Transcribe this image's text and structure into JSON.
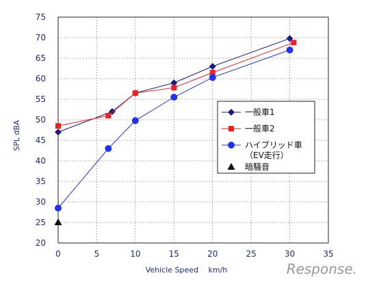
{
  "chart_data": {
    "type": "line",
    "xlabel": "Vehicle Speed　 km/h",
    "ylabel": "SPL  dBA",
    "xlim": [
      0,
      35
    ],
    "ylim": [
      20,
      75
    ],
    "x_ticks": [
      0,
      5,
      10,
      15,
      20,
      25,
      30,
      35
    ],
    "y_ticks": [
      20,
      25,
      30,
      35,
      40,
      45,
      50,
      55,
      60,
      65,
      70,
      75
    ],
    "grid": true,
    "legend_position": "right",
    "series": [
      {
        "name": "一般車1",
        "color": "#1a1a80",
        "marker": "diamond",
        "x": [
          0,
          7,
          10,
          15,
          20,
          30
        ],
        "y": [
          47,
          52,
          56.5,
          59,
          63,
          69.8
        ]
      },
      {
        "name": "一般車2",
        "color": "#ee2222",
        "marker": "square",
        "x": [
          0,
          6.5,
          10,
          15,
          20,
          30.5
        ],
        "y": [
          48.5,
          51,
          56.5,
          57.8,
          61.5,
          68.8
        ]
      },
      {
        "name": "ハイブリッド車\n（EV走行）",
        "color": "#2233ee",
        "marker": "circle",
        "x": [
          0,
          6.5,
          10,
          15,
          20,
          30
        ],
        "y": [
          28.5,
          43,
          49.8,
          55.5,
          60.3,
          67
        ]
      },
      {
        "name": "暗騒音",
        "color": "#111111",
        "marker": "triangle",
        "x": [
          0
        ],
        "y": [
          25
        ]
      }
    ]
  },
  "watermark": "Response."
}
